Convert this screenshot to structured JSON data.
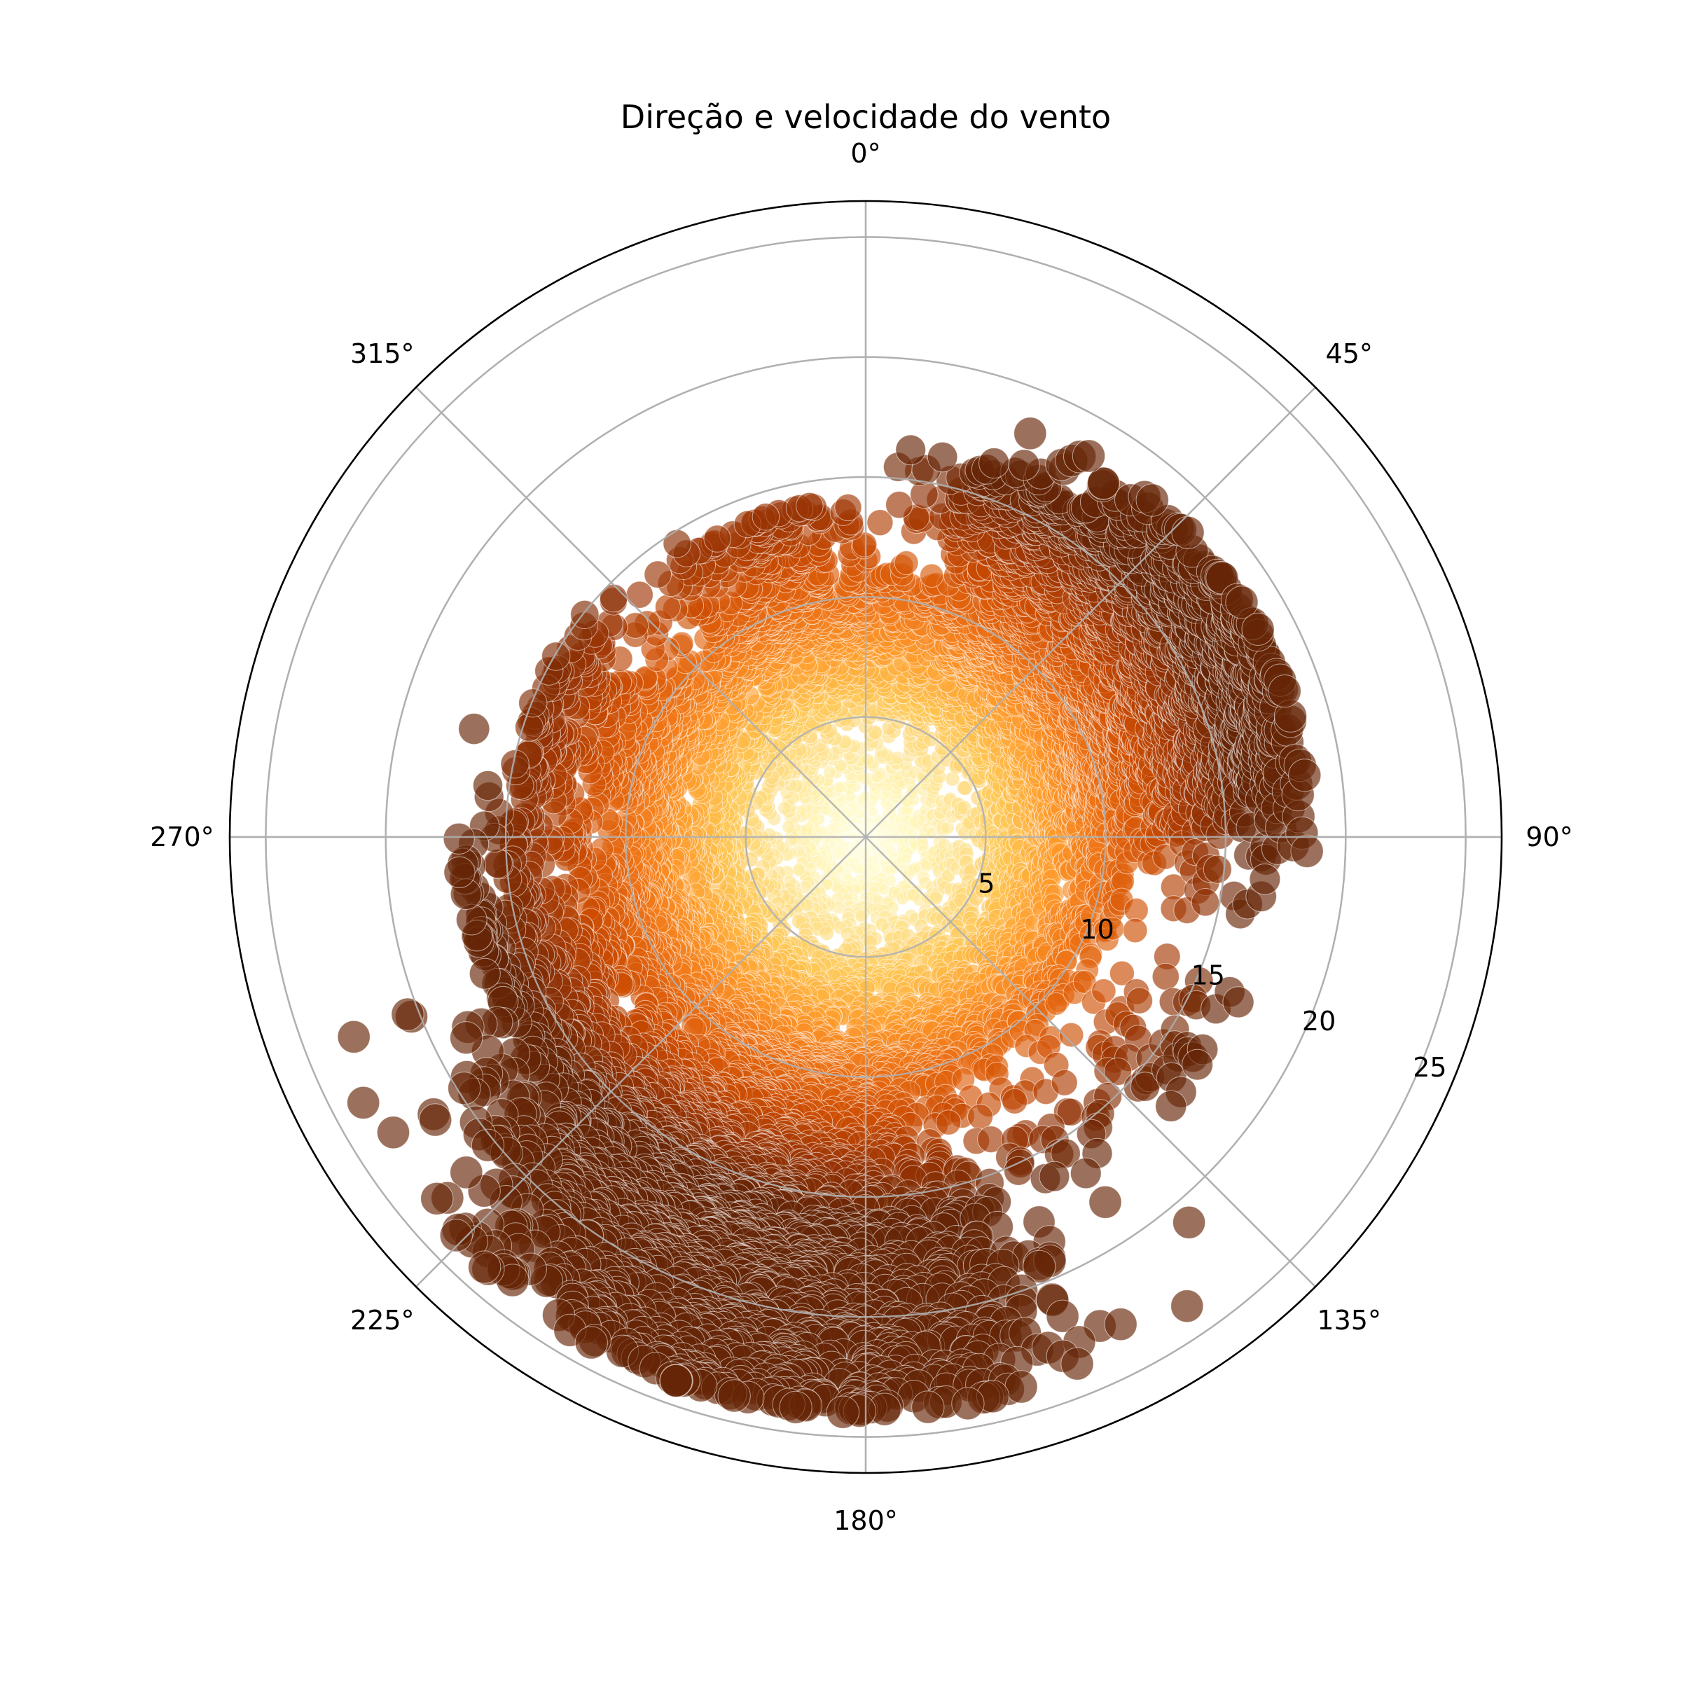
{
  "chart_data": {
    "type": "scatter",
    "projection": "polar",
    "title": "Direção e velocidade do vento",
    "theta_direction": "clockwise",
    "theta_zero_location": "top",
    "theta_ticks": [
      "0°",
      "45°",
      "90°",
      "135°",
      "180°",
      "225°",
      "270°",
      "315°"
    ],
    "theta_tick_values_deg": [
      0,
      45,
      90,
      135,
      180,
      225,
      270,
      315
    ],
    "r_ticks": [
      "5",
      "10",
      "15",
      "20",
      "25"
    ],
    "r_tick_values": [
      5,
      10,
      15,
      20,
      25
    ],
    "rlim": [
      0,
      26.5
    ],
    "r_label_angle_deg": 112.5,
    "grid": true,
    "colormap": "YlOrBr",
    "colormap_stops": [
      "#ffffe5",
      "#fff7bc",
      "#fee391",
      "#fec44f",
      "#fe9929",
      "#ec7014",
      "#cc4c02",
      "#993404",
      "#662506"
    ],
    "color_encodes": "speed",
    "marker_size_encodes": "speed",
    "point_alpha": 0.65,
    "clusters": [
      {
        "direction_deg": 0,
        "direction_spread_deg": 180,
        "speed_min": 0,
        "speed_max": 10,
        "count": 2600
      },
      {
        "direction_deg": 0,
        "direction_spread_deg": 180,
        "speed_min": 5,
        "speed_max": 11,
        "count": 1500
      },
      {
        "direction_deg": 60,
        "direction_spread_deg": 25,
        "speed_min": 9,
        "speed_max": 18.5,
        "count": 1100
      },
      {
        "direction_deg": 30,
        "direction_spread_deg": 14,
        "speed_min": 8,
        "speed_max": 16.5,
        "count": 420
      },
      {
        "direction_deg": 75,
        "direction_spread_deg": 14,
        "speed_min": 7,
        "speed_max": 17,
        "count": 420
      },
      {
        "direction_deg": 195,
        "direction_spread_deg": 27,
        "speed_min": 9,
        "speed_max": 24,
        "count": 1900
      },
      {
        "direction_deg": 215,
        "direction_spread_deg": 18,
        "speed_min": 10,
        "speed_max": 20,
        "count": 500
      },
      {
        "direction_deg": 250,
        "direction_spread_deg": 22,
        "speed_min": 8,
        "speed_max": 17,
        "count": 420
      },
      {
        "direction_deg": 290,
        "direction_spread_deg": 22,
        "speed_min": 8,
        "speed_max": 15,
        "count": 300
      },
      {
        "direction_deg": 340,
        "direction_spread_deg": 20,
        "speed_min": 8,
        "speed_max": 14,
        "count": 300
      },
      {
        "direction_deg": 130,
        "direction_spread_deg": 20,
        "speed_min": 9,
        "speed_max": 17,
        "count": 90
      }
    ]
  }
}
